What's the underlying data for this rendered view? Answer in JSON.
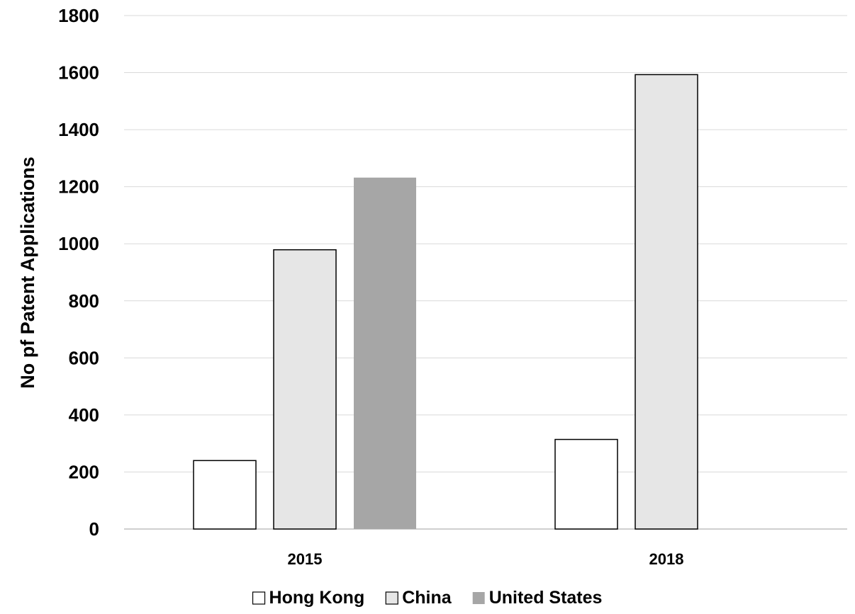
{
  "chart_data": {
    "type": "bar",
    "categories": [
      "2015",
      "2018"
    ],
    "series": [
      {
        "name": "Hong Kong",
        "values": [
          240,
          314
        ],
        "color": "#ffffff"
      },
      {
        "name": "China",
        "values": [
          979,
          1593
        ],
        "color": "#e6e6e6"
      },
      {
        "name": "United States",
        "values": [
          1232,
          null
        ],
        "color": "#a6a6a6"
      }
    ],
    "title": "",
    "xlabel": "",
    "ylabel": "No pf Patent Applications",
    "ylim": [
      0,
      1800
    ],
    "yticks": [
      "0",
      "200",
      "400",
      "600",
      "800",
      "1000",
      "1200",
      "1400",
      "1600",
      "1800"
    ],
    "grid": "horizontal",
    "legend_position": "bottom"
  }
}
